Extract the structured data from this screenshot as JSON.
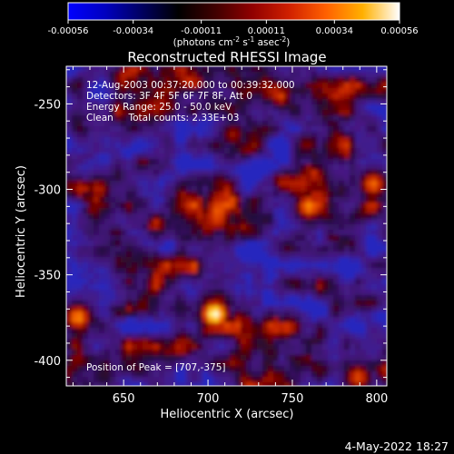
{
  "colorbar": {
    "ticks": [
      "-0.00056",
      "-0.00034",
      "-0.00011",
      "0.00011",
      "0.00034",
      "0.00056"
    ],
    "unit_label": "(photons cm",
    "unit_sup1": "-2",
    "unit_mid1": " s",
    "unit_sup2": "-1",
    "unit_mid2": " asec",
    "unit_sup3": "-2",
    "unit_end": ")",
    "colors": [
      "#0000ff",
      "#0000c0",
      "#000060",
      "#000000",
      "#400000",
      "#900000",
      "#d02000",
      "#ff6000",
      "#ffb000",
      "#ffffff"
    ]
  },
  "annotations": {
    "line1": "12-Aug-2003 00:37:20.000 to 00:39:32.000",
    "line2": "Detectors: 3F 4F 5F 6F 7F 8F, Att 0",
    "line3": "Energy Range: 25.0 - 50.0 keV",
    "line4": "Clean     Total counts: 2.33E+03",
    "peak": "Position of Peak = [707,-375]"
  },
  "footer": {
    "date": "4-May-2022 18:27"
  },
  "chart_data": {
    "type": "heatmap",
    "title": "Reconstructed RHESSI Image",
    "xlabel": "Heliocentric X (arcsec)",
    "ylabel": "Heliocentric Y (arcsec)",
    "xlim": [
      616,
      806
    ],
    "ylim": [
      -415,
      -228
    ],
    "xticks": [
      650,
      700,
      750,
      800
    ],
    "yticks": [
      -250,
      -300,
      -350,
      -400
    ],
    "grid": false,
    "colorbar_range": [
      -0.00056,
      0.00056
    ],
    "peak_position": [
      707,
      -375
    ],
    "bright_sources": [
      {
        "x": 704,
        "y": -373,
        "level": 1.0
      },
      {
        "x": 760,
        "y": -310,
        "level": 0.8
      },
      {
        "x": 798,
        "y": -297,
        "level": 0.75
      },
      {
        "x": 623,
        "y": -375,
        "level": 0.8
      },
      {
        "x": 789,
        "y": -410,
        "level": 0.7
      },
      {
        "x": 635,
        "y": -300,
        "level": 0.6
      },
      {
        "x": 715,
        "y": -268,
        "level": 0.55
      }
    ]
  }
}
